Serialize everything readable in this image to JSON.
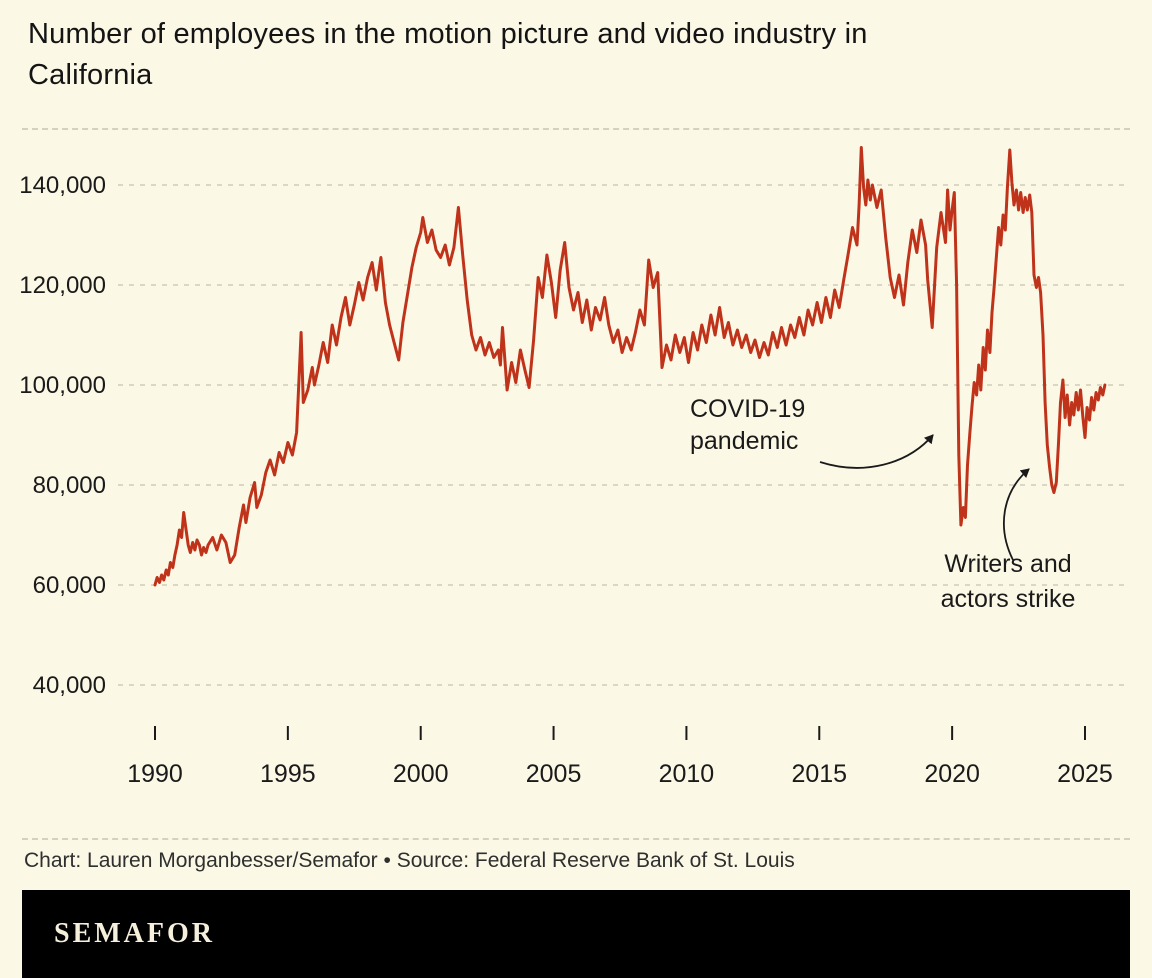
{
  "title": "Number of employees in the motion picture and video industry in California",
  "credit": "Chart: Lauren Morganbesser/Semafor • Source: Federal Reserve Bank of St. Louis",
  "logo": "SEMAFOR",
  "colors": {
    "background": "#fbf8e6",
    "line": "#c0331b",
    "grid": "#cfccba",
    "text": "#1a1a1a",
    "logo_bar": "#000000",
    "logo_text": "#f6efdb",
    "credit_text": "#2f2f2f"
  },
  "chart_data": {
    "type": "line",
    "title": "Number of employees in the motion picture and video industry in California",
    "xlabel": "",
    "ylabel": "",
    "xlim": [
      1989,
      2027
    ],
    "ylim": [
      30000,
      150000
    ],
    "grid": true,
    "x_ticks": [
      1990,
      1995,
      2000,
      2005,
      2010,
      2015,
      2020,
      2025
    ],
    "x_tick_labels": [
      "1990",
      "1995",
      "2000",
      "2005",
      "2010",
      "2015",
      "2020",
      "2025"
    ],
    "y_ticks": [
      40000,
      60000,
      80000,
      100000,
      120000,
      140000
    ],
    "y_tick_labels": [
      "40,000",
      "60,000",
      "80,000",
      "100,000",
      "120,000",
      "140,000"
    ],
    "annotations": [
      {
        "id": "covid",
        "lines": [
          "COVID-19",
          "pandemic"
        ],
        "target": {
          "x": 2020.25,
          "y": 95000
        }
      },
      {
        "id": "strike",
        "lines": [
          "Writers and",
          "actors strike"
        ],
        "target": {
          "x": 2023.6,
          "y": 95000
        }
      }
    ],
    "series": [
      {
        "name": "Employees",
        "points": [
          [
            1990.0,
            60000
          ],
          [
            1990.08,
            61500
          ],
          [
            1990.17,
            60500
          ],
          [
            1990.25,
            62000
          ],
          [
            1990.33,
            61000
          ],
          [
            1990.42,
            63000
          ],
          [
            1990.5,
            62000
          ],
          [
            1990.58,
            64500
          ],
          [
            1990.67,
            63500
          ],
          [
            1990.75,
            66000
          ],
          [
            1990.83,
            68000
          ],
          [
            1990.92,
            71000
          ],
          [
            1991.0,
            69500
          ],
          [
            1991.08,
            74500
          ],
          [
            1991.17,
            71000
          ],
          [
            1991.25,
            68000
          ],
          [
            1991.33,
            66500
          ],
          [
            1991.42,
            68500
          ],
          [
            1991.5,
            67000
          ],
          [
            1991.58,
            69000
          ],
          [
            1991.67,
            68000
          ],
          [
            1991.75,
            66000
          ],
          [
            1991.83,
            67500
          ],
          [
            1991.92,
            66500
          ],
          [
            1992.0,
            68000
          ],
          [
            1992.17,
            69500
          ],
          [
            1992.33,
            67000
          ],
          [
            1992.5,
            70000
          ],
          [
            1992.67,
            68500
          ],
          [
            1992.83,
            64500
          ],
          [
            1993.0,
            66000
          ],
          [
            1993.17,
            71500
          ],
          [
            1993.33,
            76000
          ],
          [
            1993.42,
            72500
          ],
          [
            1993.58,
            77500
          ],
          [
            1993.75,
            80500
          ],
          [
            1993.83,
            75500
          ],
          [
            1994.0,
            78000
          ],
          [
            1994.17,
            82500
          ],
          [
            1994.33,
            85000
          ],
          [
            1994.5,
            82000
          ],
          [
            1994.67,
            86500
          ],
          [
            1994.83,
            84500
          ],
          [
            1995.0,
            88500
          ],
          [
            1995.17,
            86000
          ],
          [
            1995.33,
            90500
          ],
          [
            1995.5,
            110500
          ],
          [
            1995.58,
            96500
          ],
          [
            1995.75,
            99000
          ],
          [
            1995.92,
            103500
          ],
          [
            1996.0,
            100000
          ],
          [
            1996.17,
            104000
          ],
          [
            1996.33,
            108500
          ],
          [
            1996.5,
            104500
          ],
          [
            1996.67,
            112000
          ],
          [
            1996.83,
            108000
          ],
          [
            1997.0,
            113500
          ],
          [
            1997.17,
            117500
          ],
          [
            1997.33,
            112000
          ],
          [
            1997.5,
            116000
          ],
          [
            1997.67,
            120500
          ],
          [
            1997.83,
            117000
          ],
          [
            1998.0,
            121500
          ],
          [
            1998.17,
            124500
          ],
          [
            1998.33,
            119000
          ],
          [
            1998.5,
            125500
          ],
          [
            1998.67,
            116500
          ],
          [
            1998.83,
            112000
          ],
          [
            1999.0,
            108500
          ],
          [
            1999.17,
            105000
          ],
          [
            1999.33,
            112500
          ],
          [
            1999.5,
            118000
          ],
          [
            1999.67,
            123500
          ],
          [
            1999.83,
            127500
          ],
          [
            2000.0,
            130500
          ],
          [
            2000.08,
            133500
          ],
          [
            2000.25,
            128500
          ],
          [
            2000.42,
            131000
          ],
          [
            2000.58,
            127000
          ],
          [
            2000.75,
            125500
          ],
          [
            2000.92,
            128000
          ],
          [
            2001.08,
            124000
          ],
          [
            2001.25,
            127500
          ],
          [
            2001.42,
            135500
          ],
          [
            2001.58,
            126000
          ],
          [
            2001.75,
            117000
          ],
          [
            2001.92,
            110000
          ],
          [
            2002.08,
            107000
          ],
          [
            2002.25,
            109500
          ],
          [
            2002.42,
            106000
          ],
          [
            2002.58,
            108500
          ],
          [
            2002.75,
            105500
          ],
          [
            2002.92,
            107000
          ],
          [
            2003.0,
            104000
          ],
          [
            2003.08,
            111500
          ],
          [
            2003.25,
            99000
          ],
          [
            2003.42,
            104500
          ],
          [
            2003.58,
            100500
          ],
          [
            2003.75,
            107000
          ],
          [
            2003.92,
            103000
          ],
          [
            2004.08,
            99500
          ],
          [
            2004.25,
            109000
          ],
          [
            2004.42,
            121500
          ],
          [
            2004.58,
            117500
          ],
          [
            2004.75,
            126000
          ],
          [
            2004.92,
            120500
          ],
          [
            2005.08,
            113500
          ],
          [
            2005.25,
            123000
          ],
          [
            2005.42,
            128500
          ],
          [
            2005.58,
            119500
          ],
          [
            2005.75,
            115000
          ],
          [
            2005.92,
            118500
          ],
          [
            2006.08,
            112500
          ],
          [
            2006.25,
            117000
          ],
          [
            2006.42,
            111000
          ],
          [
            2006.58,
            115500
          ],
          [
            2006.75,
            113000
          ],
          [
            2006.92,
            117500
          ],
          [
            2007.08,
            112000
          ],
          [
            2007.25,
            108500
          ],
          [
            2007.42,
            111000
          ],
          [
            2007.58,
            106500
          ],
          [
            2007.75,
            109500
          ],
          [
            2007.92,
            107000
          ],
          [
            2008.08,
            110500
          ],
          [
            2008.25,
            115000
          ],
          [
            2008.42,
            112000
          ],
          [
            2008.58,
            125000
          ],
          [
            2008.75,
            119500
          ],
          [
            2008.92,
            122500
          ],
          [
            2009.08,
            103500
          ],
          [
            2009.25,
            108000
          ],
          [
            2009.42,
            105000
          ],
          [
            2009.58,
            110000
          ],
          [
            2009.75,
            106500
          ],
          [
            2009.92,
            109500
          ],
          [
            2010.08,
            104500
          ],
          [
            2010.25,
            110500
          ],
          [
            2010.42,
            107000
          ],
          [
            2010.58,
            112000
          ],
          [
            2010.75,
            108500
          ],
          [
            2010.92,
            114000
          ],
          [
            2011.08,
            110000
          ],
          [
            2011.25,
            115500
          ],
          [
            2011.42,
            109500
          ],
          [
            2011.58,
            112500
          ],
          [
            2011.75,
            108000
          ],
          [
            2011.92,
            111000
          ],
          [
            2012.08,
            107500
          ],
          [
            2012.25,
            110000
          ],
          [
            2012.42,
            106500
          ],
          [
            2012.58,
            109000
          ],
          [
            2012.75,
            105500
          ],
          [
            2012.92,
            108500
          ],
          [
            2013.08,
            106000
          ],
          [
            2013.25,
            110500
          ],
          [
            2013.42,
            107500
          ],
          [
            2013.58,
            111500
          ],
          [
            2013.75,
            108000
          ],
          [
            2013.92,
            112000
          ],
          [
            2014.08,
            109500
          ],
          [
            2014.25,
            113500
          ],
          [
            2014.42,
            110000
          ],
          [
            2014.58,
            115000
          ],
          [
            2014.75,
            112000
          ],
          [
            2014.92,
            116500
          ],
          [
            2015.08,
            112500
          ],
          [
            2015.25,
            117500
          ],
          [
            2015.42,
            113500
          ],
          [
            2015.58,
            119000
          ],
          [
            2015.75,
            115500
          ],
          [
            2015.92,
            121000
          ],
          [
            2016.08,
            126000
          ],
          [
            2016.25,
            131500
          ],
          [
            2016.42,
            128000
          ],
          [
            2016.5,
            136000
          ],
          [
            2016.58,
            147500
          ],
          [
            2016.67,
            139500
          ],
          [
            2016.75,
            136000
          ],
          [
            2016.83,
            141000
          ],
          [
            2016.92,
            137000
          ],
          [
            2017.0,
            140000
          ],
          [
            2017.17,
            135500
          ],
          [
            2017.33,
            139000
          ],
          [
            2017.5,
            129500
          ],
          [
            2017.67,
            121500
          ],
          [
            2017.83,
            117500
          ],
          [
            2018.0,
            122000
          ],
          [
            2018.17,
            116000
          ],
          [
            2018.33,
            124500
          ],
          [
            2018.5,
            131000
          ],
          [
            2018.67,
            126500
          ],
          [
            2018.83,
            133000
          ],
          [
            2019.0,
            128000
          ],
          [
            2019.08,
            121000
          ],
          [
            2019.25,
            111500
          ],
          [
            2019.42,
            127500
          ],
          [
            2019.58,
            134500
          ],
          [
            2019.75,
            128500
          ],
          [
            2019.83,
            139000
          ],
          [
            2019.92,
            131000
          ],
          [
            2020.0,
            135000
          ],
          [
            2020.08,
            138500
          ],
          [
            2020.17,
            120000
          ],
          [
            2020.25,
            86000
          ],
          [
            2020.33,
            72000
          ],
          [
            2020.42,
            75500
          ],
          [
            2020.5,
            73500
          ],
          [
            2020.58,
            84000
          ],
          [
            2020.67,
            90500
          ],
          [
            2020.75,
            96000
          ],
          [
            2020.83,
            100500
          ],
          [
            2020.92,
            98000
          ],
          [
            2021.0,
            104000
          ],
          [
            2021.08,
            99000
          ],
          [
            2021.17,
            107500
          ],
          [
            2021.25,
            103000
          ],
          [
            2021.33,
            111000
          ],
          [
            2021.42,
            106500
          ],
          [
            2021.5,
            114500
          ],
          [
            2021.58,
            119500
          ],
          [
            2021.67,
            126000
          ],
          [
            2021.75,
            131500
          ],
          [
            2021.83,
            128000
          ],
          [
            2021.92,
            134000
          ],
          [
            2022.0,
            131000
          ],
          [
            2022.08,
            139500
          ],
          [
            2022.17,
            147000
          ],
          [
            2022.25,
            140500
          ],
          [
            2022.33,
            136000
          ],
          [
            2022.42,
            139000
          ],
          [
            2022.5,
            135000
          ],
          [
            2022.58,
            138500
          ],
          [
            2022.67,
            134500
          ],
          [
            2022.75,
            137500
          ],
          [
            2022.83,
            135000
          ],
          [
            2022.92,
            138000
          ],
          [
            2023.0,
            134500
          ],
          [
            2023.08,
            122000
          ],
          [
            2023.17,
            119500
          ],
          [
            2023.25,
            121500
          ],
          [
            2023.33,
            118500
          ],
          [
            2023.42,
            110000
          ],
          [
            2023.5,
            96500
          ],
          [
            2023.58,
            88000
          ],
          [
            2023.67,
            83500
          ],
          [
            2023.75,
            80000
          ],
          [
            2023.83,
            78500
          ],
          [
            2023.92,
            80500
          ],
          [
            2024.0,
            88000
          ],
          [
            2024.08,
            96500
          ],
          [
            2024.17,
            101000
          ],
          [
            2024.25,
            93500
          ],
          [
            2024.33,
            98000
          ],
          [
            2024.42,
            92000
          ],
          [
            2024.5,
            96500
          ],
          [
            2024.58,
            94000
          ],
          [
            2024.67,
            98500
          ],
          [
            2024.75,
            95000
          ],
          [
            2024.83,
            99000
          ],
          [
            2024.92,
            93500
          ],
          [
            2025.0,
            89500
          ],
          [
            2025.08,
            95500
          ],
          [
            2025.17,
            93000
          ],
          [
            2025.25,
            97500
          ],
          [
            2025.33,
            95000
          ],
          [
            2025.42,
            98500
          ],
          [
            2025.5,
            97000
          ],
          [
            2025.58,
            99500
          ],
          [
            2025.67,
            98000
          ],
          [
            2025.75,
            100000
          ]
        ]
      }
    ]
  }
}
